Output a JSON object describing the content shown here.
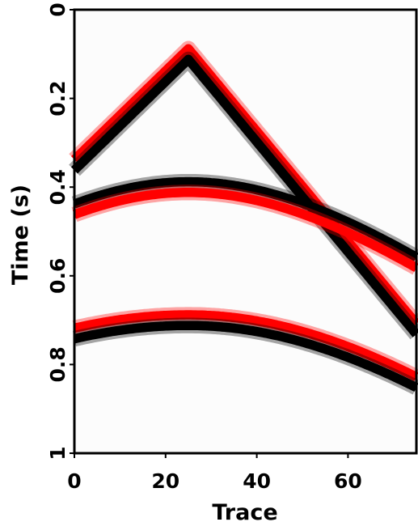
{
  "chart_data": {
    "type": "seismic-section",
    "xlabel": "Trace",
    "ylabel": "Time (s)",
    "xlim": [
      0,
      75
    ],
    "ylim": [
      0,
      1
    ],
    "y_inverted": true,
    "x_ticks": [
      {
        "value": 0,
        "label": "0"
      },
      {
        "value": 20,
        "label": "20"
      },
      {
        "value": 40,
        "label": "40"
      },
      {
        "value": 60,
        "label": "60"
      }
    ],
    "y_ticks": [
      {
        "value": 0,
        "label": "0"
      },
      {
        "value": 0.2,
        "label": "0.2"
      },
      {
        "value": 0.4,
        "label": "0.4"
      },
      {
        "value": 0.6,
        "label": "0.6"
      },
      {
        "value": 0.8,
        "label": "0.8"
      },
      {
        "value": 1,
        "label": "1"
      }
    ],
    "polarity_colors": {
      "positive": "#000000",
      "negative": "#ff0000"
    },
    "events": [
      {
        "name": "",
        "shape": "linear",
        "apex_trace": 25,
        "apex_time": 0.1,
        "left_time": 0.35,
        "right_time": 0.72,
        "leading_polarity": "negative"
      },
      {
        "name": "",
        "shape": "hyperbolic",
        "apex_trace": 25,
        "apex_time": 0.4,
        "left_time": 0.45,
        "right_time": 0.57,
        "leading_polarity": "positive"
      },
      {
        "name": "",
        "shape": "hyperbolic",
        "apex_trace": 25,
        "apex_time": 0.7,
        "left_time": 0.73,
        "right_time": 0.84,
        "leading_polarity": "negative"
      }
    ]
  }
}
